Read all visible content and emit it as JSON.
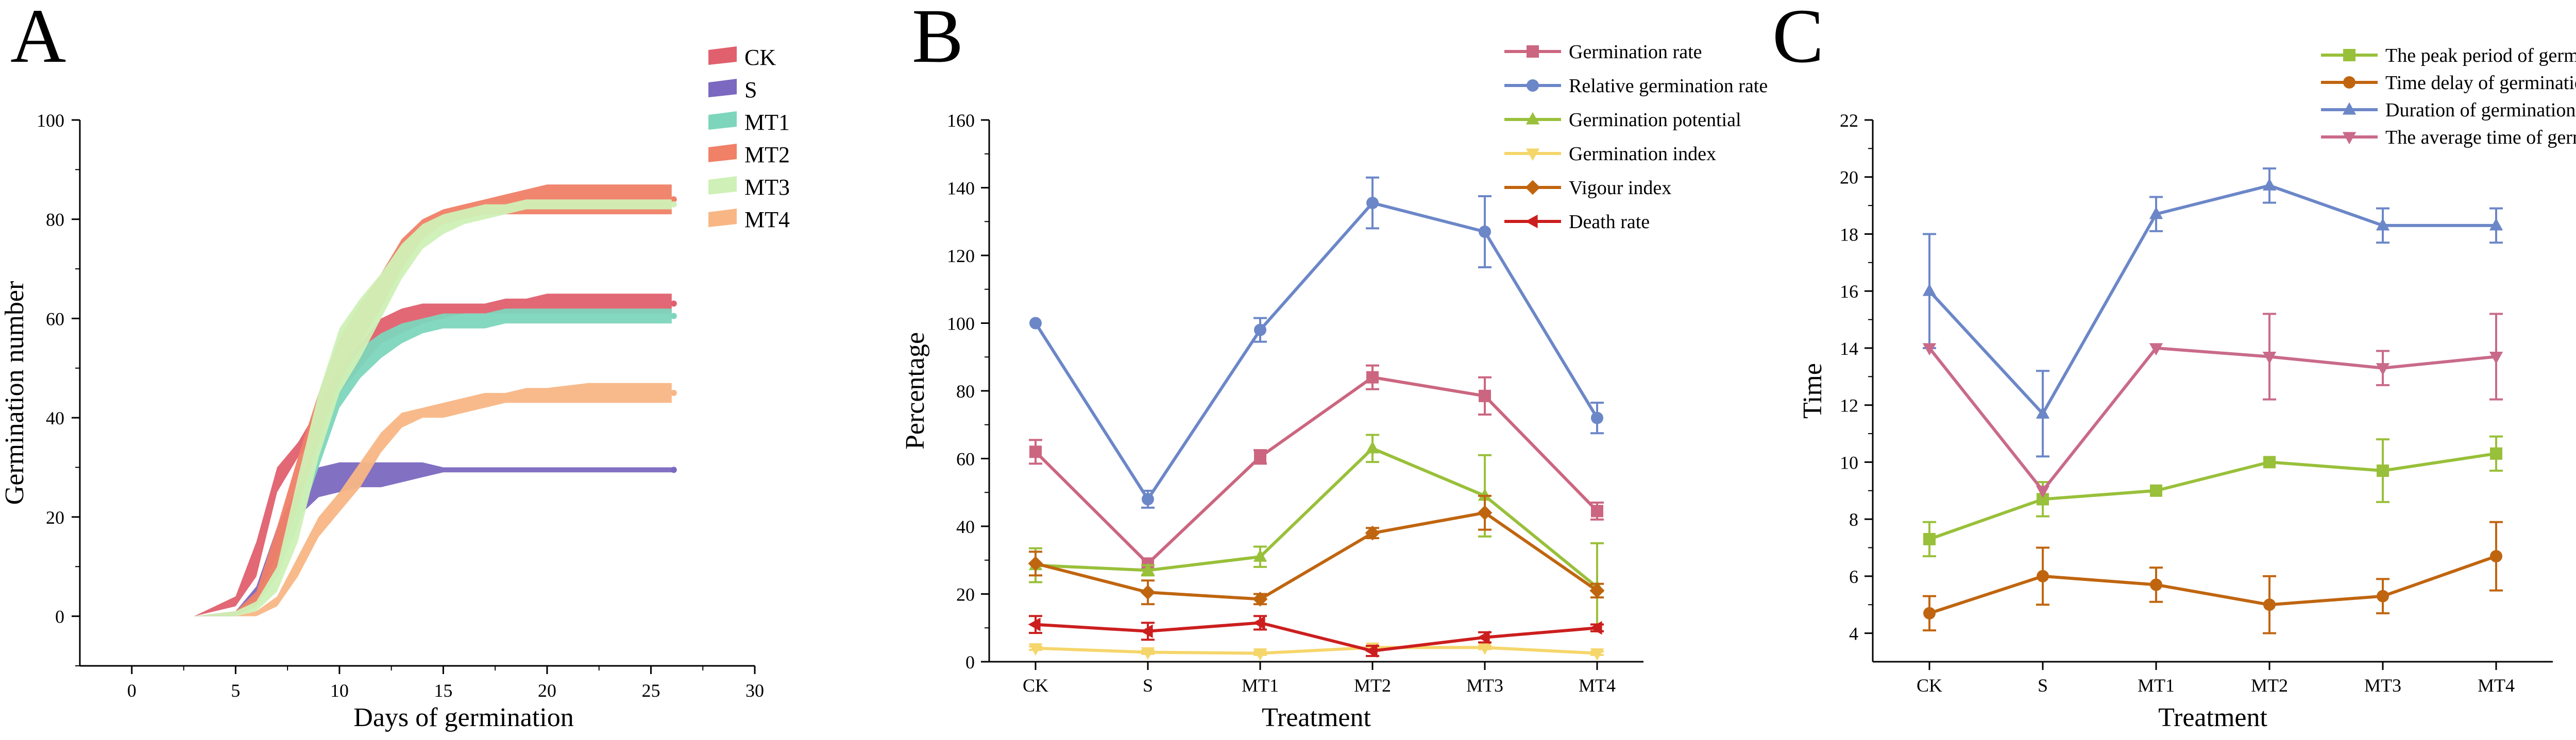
{
  "figure": {
    "panels": [
      "A",
      "B",
      "C"
    ]
  },
  "chart_data": [
    {
      "panel": "A",
      "type": "area",
      "xlabel": "Days of germination",
      "ylabel": "Germination number",
      "xlim": [
        -2.5,
        30
      ],
      "ylim": [
        -10,
        100
      ],
      "xticks": [
        0,
        5,
        10,
        15,
        20,
        25,
        30
      ],
      "yticks": [
        0,
        20,
        40,
        60,
        80,
        100
      ],
      "grid": false,
      "legend_position": "top-right",
      "series": [
        {
          "name": "CK",
          "color": "#E0606E",
          "x": [
            1,
            3,
            5,
            6,
            7,
            8,
            9,
            10,
            11,
            12,
            13,
            14,
            15,
            16,
            17,
            18,
            19,
            20,
            22,
            24,
            26
          ],
          "lower": [
            0,
            0,
            2,
            8,
            25,
            32,
            37,
            45,
            50,
            55,
            57,
            59,
            60,
            61,
            61,
            61,
            61,
            61,
            61,
            61,
            61
          ],
          "upper": [
            0,
            0,
            4,
            15,
            30,
            35,
            42,
            50,
            55,
            60,
            62,
            63,
            63,
            63,
            63,
            64,
            64,
            65,
            65,
            65,
            65
          ]
        },
        {
          "name": "S",
          "color": "#7B68C0",
          "x": [
            1,
            3,
            5,
            6,
            7,
            8,
            9,
            10,
            11,
            12,
            13,
            14,
            15,
            16,
            17,
            18,
            19,
            20,
            22,
            24,
            26
          ],
          "lower": [
            0,
            0,
            0,
            3,
            12,
            20,
            24,
            25,
            26,
            26,
            27,
            28,
            29,
            29,
            29,
            29,
            29,
            29,
            29,
            29,
            29
          ],
          "upper": [
            0,
            0,
            1,
            6,
            18,
            26,
            30,
            31,
            31,
            31,
            31,
            31,
            30,
            30,
            30,
            30,
            30,
            30,
            30,
            30,
            30
          ]
        },
        {
          "name": "MT1",
          "color": "#7DD6BC",
          "x": [
            1,
            3,
            5,
            6,
            7,
            8,
            9,
            10,
            11,
            12,
            13,
            14,
            15,
            16,
            17,
            18,
            19,
            20,
            22,
            24,
            26
          ],
          "lower": [
            0,
            0,
            0,
            2,
            8,
            18,
            30,
            42,
            48,
            52,
            55,
            57,
            58,
            58,
            58,
            59,
            59,
            59,
            59,
            59,
            59
          ],
          "upper": [
            0,
            0,
            1,
            4,
            12,
            25,
            38,
            48,
            54,
            57,
            59,
            60,
            61,
            61,
            61,
            62,
            62,
            62,
            62,
            62,
            62
          ]
        },
        {
          "name": "MT2",
          "color": "#F08066",
          "x": [
            1,
            3,
            5,
            6,
            7,
            8,
            9,
            10,
            11,
            12,
            13,
            14,
            15,
            16,
            17,
            18,
            19,
            20,
            22,
            24,
            26
          ],
          "lower": [
            0,
            0,
            0,
            2,
            10,
            22,
            35,
            47,
            55,
            62,
            70,
            76,
            79,
            80,
            81,
            81,
            81,
            81,
            81,
            81,
            81
          ],
          "upper": [
            0,
            0,
            1,
            5,
            18,
            32,
            45,
            56,
            63,
            69,
            76,
            80,
            82,
            83,
            84,
            85,
            86,
            87,
            87,
            87,
            87
          ]
        },
        {
          "name": "MT3",
          "color": "#CFF0B6",
          "x": [
            1,
            3,
            5,
            6,
            7,
            8,
            9,
            10,
            11,
            12,
            13,
            14,
            15,
            16,
            17,
            18,
            19,
            20,
            22,
            24,
            26
          ],
          "lower": [
            0,
            0,
            0,
            1,
            5,
            15,
            32,
            45,
            52,
            60,
            68,
            74,
            77,
            79,
            80,
            81,
            82,
            82,
            82,
            82,
            82
          ],
          "upper": [
            0,
            0,
            1,
            3,
            10,
            28,
            45,
            58,
            64,
            69,
            75,
            79,
            81,
            82,
            83,
            83,
            84,
            84,
            84,
            84,
            84
          ]
        },
        {
          "name": "MT4",
          "color": "#F8B685",
          "x": [
            1,
            3,
            5,
            6,
            7,
            8,
            9,
            10,
            11,
            12,
            13,
            14,
            15,
            16,
            17,
            18,
            19,
            20,
            22,
            24,
            26
          ],
          "lower": [
            0,
            0,
            0,
            0,
            2,
            8,
            16,
            21,
            26,
            33,
            38,
            40,
            40,
            41,
            42,
            43,
            43,
            43,
            43,
            43,
            43
          ],
          "upper": [
            0,
            0,
            0,
            1,
            4,
            12,
            20,
            25,
            31,
            37,
            41,
            42,
            43,
            44,
            45,
            45,
            46,
            46,
            47,
            47,
            47
          ]
        }
      ]
    },
    {
      "panel": "B",
      "type": "line",
      "xlabel": "Treatment",
      "ylabel": "Percentage",
      "categories": [
        "CK",
        "S",
        "MT1",
        "MT2",
        "MT3",
        "MT4"
      ],
      "ylim": [
        0,
        160
      ],
      "yticks": [
        0,
        20,
        40,
        60,
        80,
        100,
        120,
        140,
        160
      ],
      "grid": false,
      "legend_position": "top-right",
      "series": [
        {
          "name": "Germination rate",
          "color": "#CC6680",
          "marker": "square",
          "values": [
            62,
            29,
            60.5,
            84,
            78.5,
            44.5
          ],
          "errors": [
            3.5,
            1.5,
            2,
            3.5,
            5.5,
            2.5
          ]
        },
        {
          "name": "Relative germination rate",
          "color": "#6C87C8",
          "marker": "circle",
          "values": [
            100,
            48,
            98,
            135.5,
            127,
            72
          ],
          "errors": [
            0,
            2.5,
            3.5,
            7.5,
            10.5,
            4.5
          ]
        },
        {
          "name": "Germination potential",
          "color": "#99C03A",
          "marker": "triangle-up",
          "values": [
            28.5,
            27,
            31,
            63,
            49,
            22
          ],
          "errors": [
            5,
            1.5,
            3,
            4,
            12,
            13
          ]
        },
        {
          "name": "Germination index",
          "color": "#F5D66B",
          "marker": "triangle-down",
          "values": [
            4,
            2.8,
            2.5,
            4.2,
            4.2,
            2.5
          ],
          "errors": [
            0.5,
            0.5,
            0.5,
            0.5,
            0.5,
            0.5
          ]
        },
        {
          "name": "Vigour index",
          "color": "#C0650F",
          "marker": "diamond",
          "values": [
            29,
            20.5,
            18.5,
            38,
            44,
            21
          ],
          "errors": [
            3.5,
            3.5,
            1.5,
            1.5,
            5,
            2
          ]
        },
        {
          "name": "Death rate",
          "color": "#CC1E1E",
          "marker": "triangle-left",
          "values": [
            11,
            9,
            11.5,
            3.2,
            7.2,
            10
          ],
          "errors": [
            2.5,
            2.5,
            2,
            1.5,
            1.5,
            1
          ]
        }
      ]
    },
    {
      "panel": "C",
      "type": "line",
      "xlabel": "Treatment",
      "ylabel": "Time",
      "categories": [
        "CK",
        "S",
        "MT1",
        "MT2",
        "MT3",
        "MT4"
      ],
      "ylim": [
        3,
        22
      ],
      "yticks": [
        4,
        6,
        8,
        10,
        12,
        14,
        16,
        18,
        20,
        22
      ],
      "grid": false,
      "legend_position": "top-right",
      "series": [
        {
          "name": "The peak period of germination",
          "color": "#99C03A",
          "marker": "square",
          "values": [
            7.3,
            8.7,
            9,
            10,
            9.7,
            10.3
          ],
          "errors": [
            0.6,
            0.6,
            0,
            0,
            1.1,
            0.6
          ]
        },
        {
          "name": "Time delay of germination",
          "color": "#C0650F",
          "marker": "circle",
          "values": [
            4.7,
            6,
            5.7,
            5,
            5.3,
            6.7
          ],
          "errors": [
            0.6,
            1,
            0.6,
            1,
            0.6,
            1.2
          ]
        },
        {
          "name": "Duration of germination",
          "color": "#6C87C8",
          "marker": "triangle-up",
          "values": [
            16,
            11.7,
            18.7,
            19.7,
            18.3,
            18.3
          ],
          "errors": [
            2,
            1.5,
            0.6,
            0.6,
            0.6,
            0.6
          ]
        },
        {
          "name": "The average time of germination",
          "color": "#C96A8A",
          "marker": "triangle-down",
          "values": [
            14,
            9,
            14,
            13.7,
            13.3,
            13.7
          ],
          "errors": [
            0,
            0,
            0,
            1.5,
            0.6,
            1.5
          ]
        }
      ]
    }
  ]
}
